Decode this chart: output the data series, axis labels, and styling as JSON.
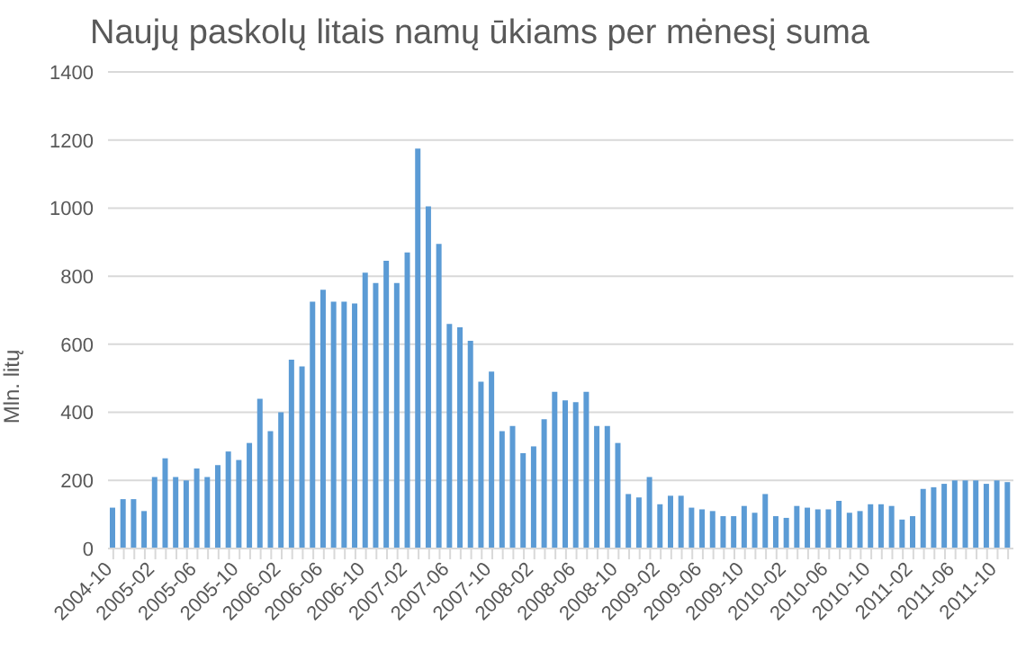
{
  "chart_data": {
    "type": "bar",
    "title": "Naujų paskolų litais namų ūkiams per mėnesį suma",
    "ylabel": "Mln. litų",
    "categories": [
      "2004-10",
      null,
      null,
      null,
      "2005-02",
      null,
      null,
      null,
      "2005-06",
      null,
      null,
      null,
      "2005-10",
      null,
      null,
      null,
      "2006-02",
      null,
      null,
      null,
      "2006-06",
      null,
      null,
      null,
      "2006-10",
      null,
      null,
      null,
      "2007-02",
      null,
      null,
      null,
      "2007-06",
      null,
      null,
      null,
      "2007-10",
      null,
      null,
      null,
      "2008-02",
      null,
      null,
      null,
      "2008-06",
      null,
      null,
      null,
      "2008-10",
      null,
      null,
      null,
      "2009-02",
      null,
      null,
      null,
      "2009-06",
      null,
      null,
      null,
      "2009-10",
      null,
      null,
      null,
      "2010-02",
      null,
      null,
      null,
      "2010-06",
      null,
      null,
      null,
      "2010-10",
      null,
      null,
      null,
      "2011-02",
      null,
      null,
      null,
      "2011-06",
      null,
      null,
      null,
      "2011-10",
      null
    ],
    "values": [
      120,
      145,
      145,
      110,
      210,
      265,
      210,
      200,
      235,
      210,
      245,
      285,
      260,
      310,
      440,
      345,
      400,
      555,
      535,
      725,
      760,
      725,
      725,
      720,
      810,
      780,
      845,
      780,
      870,
      1175,
      1005,
      895,
      660,
      650,
      610,
      490,
      520,
      345,
      360,
      280,
      300,
      380,
      460,
      435,
      430,
      460,
      360,
      360,
      310,
      160,
      150,
      210,
      130,
      155,
      155,
      120,
      115,
      110,
      95,
      95,
      125,
      105,
      160,
      95,
      90,
      125,
      120,
      115,
      115,
      140,
      105,
      110,
      130,
      130,
      125,
      85,
      95,
      175,
      180,
      190,
      200,
      200,
      200,
      190,
      200,
      195
    ],
    "color": "#5b9bd5",
    "ylim": [
      0,
      1400
    ],
    "yticks": [
      0,
      200,
      400,
      600,
      800,
      1000,
      1200,
      1400
    ],
    "grid": "y"
  }
}
